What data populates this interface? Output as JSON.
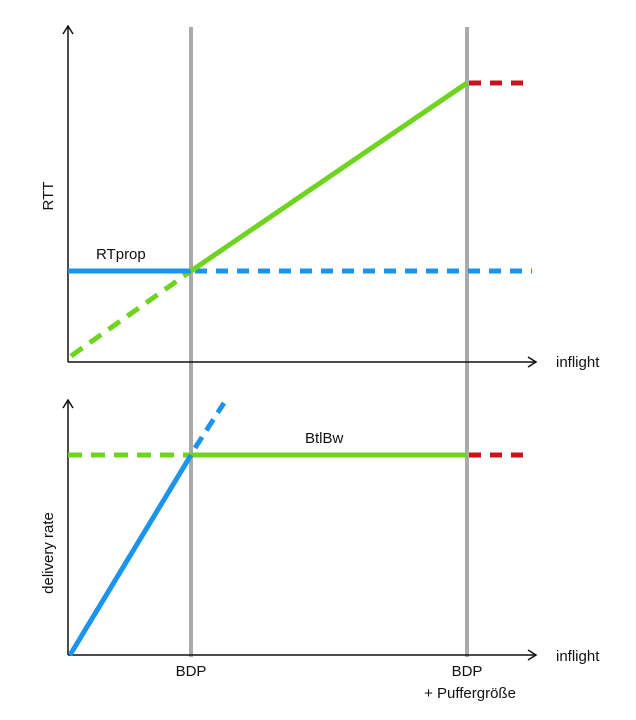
{
  "colors": {
    "blue": "#1a94ec",
    "green": "#6ed420",
    "red": "#c8151b",
    "gray": "#aaaaaa",
    "axis": "#111111"
  },
  "top_chart": {
    "ylabel": "RTT",
    "xlabel": "inflight",
    "rtprop_label": "RTprop"
  },
  "bottom_chart": {
    "ylabel": "delivery rate",
    "xlabel": "inflight",
    "btlbw_label": "BtlBw"
  },
  "markers": {
    "bdp": "BDP",
    "bdp_buffer_line1": "BDP",
    "bdp_buffer_line2": "+ Puffergröße"
  }
}
